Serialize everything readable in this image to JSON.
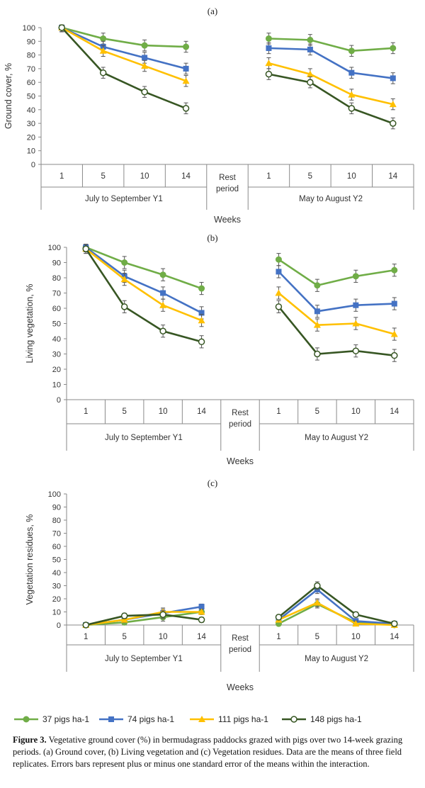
{
  "colors": {
    "37": "#70ad47",
    "74": "#4472c4",
    "111": "#ffc000",
    "148": "#375623",
    "axis": "#8a8a8a"
  },
  "legend": [
    {
      "label": "37 pigs ha-1",
      "color": "#70ad47",
      "marker": "circle-filled"
    },
    {
      "label": "74 pigs ha-1",
      "color": "#4472c4",
      "marker": "square"
    },
    {
      "label": "111 pigs ha-1",
      "color": "#ffc000",
      "marker": "triangle"
    },
    {
      "label": "148 pigs ha-1",
      "color": "#375623",
      "marker": "circle-open"
    }
  ],
  "caption": {
    "label": "Figure 3.",
    "text": " Vegetative ground cover (%) in bermudagrass paddocks grazed with pigs over two 14-week grazing periods. (a) Ground cover, (b) Living vegetation and (c) Vegetation residues. Data are the means of three field replicates. Errors bars represent plus or minus one standard error of the means within the interaction."
  },
  "chart_data": [
    {
      "panel": "(a)",
      "type": "line",
      "ylabel": "Ground cover, %",
      "xlabel": "Weeks",
      "ylim": [
        0,
        100
      ],
      "yticks": [
        0,
        10,
        20,
        30,
        40,
        50,
        60,
        70,
        80,
        90,
        100
      ],
      "week_labels": [
        "1",
        "5",
        "10",
        "14"
      ],
      "groups": [
        "July to September Y1",
        "Rest period",
        "May to August Y2"
      ],
      "series": [
        {
          "name": "37 pigs ha-1",
          "p1": [
            100,
            92,
            87,
            86
          ],
          "p1_err": [
            3,
            4,
            4,
            4
          ],
          "p2": [
            92,
            91,
            83,
            85
          ],
          "p2_err": [
            4,
            4,
            4,
            4
          ]
        },
        {
          "name": "74 pigs ha-1",
          "p1": [
            100,
            86,
            78,
            70
          ],
          "p1_err": [
            3,
            4,
            4,
            4
          ],
          "p2": [
            85,
            84,
            67,
            63
          ],
          "p2_err": [
            4,
            4,
            4,
            4
          ]
        },
        {
          "name": "111 pigs ha-1",
          "p1": [
            100,
            83,
            72,
            61
          ],
          "p1_err": [
            3,
            4,
            4,
            4
          ],
          "p2": [
            74,
            66,
            51,
            44
          ],
          "p2_err": [
            4,
            4,
            4,
            4
          ]
        },
        {
          "name": "148 pigs ha-1",
          "p1": [
            100,
            67,
            53,
            41
          ],
          "p1_err": [
            3,
            4,
            4,
            4
          ],
          "p2": [
            66,
            60,
            41,
            30
          ],
          "p2_err": [
            4,
            4,
            4,
            4
          ]
        }
      ]
    },
    {
      "panel": "(b)",
      "type": "line",
      "ylabel": "Living vegetation, %",
      "xlabel": "Weeks",
      "ylim": [
        0,
        100
      ],
      "yticks": [
        0,
        10,
        20,
        30,
        40,
        50,
        60,
        70,
        80,
        90,
        100
      ],
      "week_labels": [
        "1",
        "5",
        "10",
        "14"
      ],
      "groups": [
        "July to September Y1",
        "Rest period",
        "May to August Y2"
      ],
      "series": [
        {
          "name": "37 pigs ha-1",
          "p1": [
            100,
            90,
            82,
            73
          ],
          "p1_err": [
            3,
            4,
            4,
            4
          ],
          "p2": [
            92,
            75,
            81,
            85
          ],
          "p2_err": [
            4,
            4,
            4,
            4
          ]
        },
        {
          "name": "74 pigs ha-1",
          "p1": [
            100,
            81,
            70,
            57
          ],
          "p1_err": [
            3,
            4,
            4,
            4
          ],
          "p2": [
            84,
            58,
            62,
            63
          ],
          "p2_err": [
            4,
            4,
            4,
            4
          ]
        },
        {
          "name": "111 pigs ha-1",
          "p1": [
            99,
            79,
            62,
            52
          ],
          "p1_err": [
            3,
            4,
            4,
            4
          ],
          "p2": [
            70,
            49,
            50,
            43
          ],
          "p2_err": [
            4,
            4,
            4,
            4
          ]
        },
        {
          "name": "148 pigs ha-1",
          "p1": [
            99,
            61,
            45,
            38
          ],
          "p1_err": [
            3,
            4,
            4,
            4
          ],
          "p2": [
            61,
            30,
            32,
            29
          ],
          "p2_err": [
            4,
            4,
            4,
            4
          ]
        }
      ]
    },
    {
      "panel": "(c)",
      "type": "line",
      "ylabel": "Vegetation residues, %",
      "xlabel": "Weeks",
      "ylim": [
        0,
        100
      ],
      "yticks": [
        0,
        10,
        20,
        30,
        40,
        50,
        60,
        70,
        80,
        90,
        100
      ],
      "week_labels": [
        "1",
        "5",
        "10",
        "14"
      ],
      "groups": [
        "July to September Y1",
        "Rest period",
        "May to August Y2"
      ],
      "series": [
        {
          "name": "37 pigs ha-1",
          "p1": [
            0,
            2,
            6,
            10
          ],
          "p1_err": [
            1,
            2,
            3,
            2
          ],
          "p2": [
            1,
            16,
            2,
            0
          ],
          "p2_err": [
            1,
            3,
            2,
            1
          ]
        },
        {
          "name": "74 pigs ha-1",
          "p1": [
            0,
            4,
            9,
            14
          ],
          "p1_err": [
            1,
            2,
            3,
            2
          ],
          "p2": [
            4,
            27,
            3,
            1
          ],
          "p2_err": [
            1,
            3,
            2,
            1
          ]
        },
        {
          "name": "111 pigs ha-1",
          "p1": [
            0,
            4,
            10,
            10
          ],
          "p1_err": [
            1,
            2,
            3,
            2
          ],
          "p2": [
            4,
            17,
            1,
            0
          ],
          "p2_err": [
            1,
            3,
            2,
            1
          ]
        },
        {
          "name": "148 pigs ha-1",
          "p1": [
            0,
            7,
            8,
            4
          ],
          "p1_err": [
            1,
            2,
            3,
            2
          ],
          "p2": [
            6,
            30,
            8,
            1
          ],
          "p2_err": [
            1,
            3,
            2,
            1
          ]
        }
      ]
    }
  ]
}
